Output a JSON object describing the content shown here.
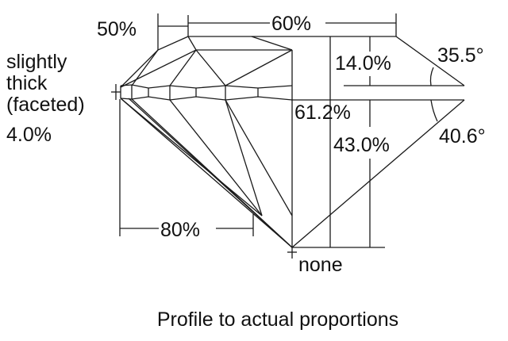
{
  "labels": {
    "star_length": "50%",
    "table": "60%",
    "girdle_line1": "slightly",
    "girdle_line2": "thick",
    "girdle_line3": "(faceted)",
    "girdle_value": "4.0%",
    "crown_height": "14.0%",
    "crown_angle": "35.5°",
    "total_depth": "61.2%",
    "pavilion_depth": "43.0%",
    "pavilion_angle": "40.6°",
    "lower_girdle": "80%",
    "culet": "none"
  },
  "caption": "Profile to actual proportions"
}
